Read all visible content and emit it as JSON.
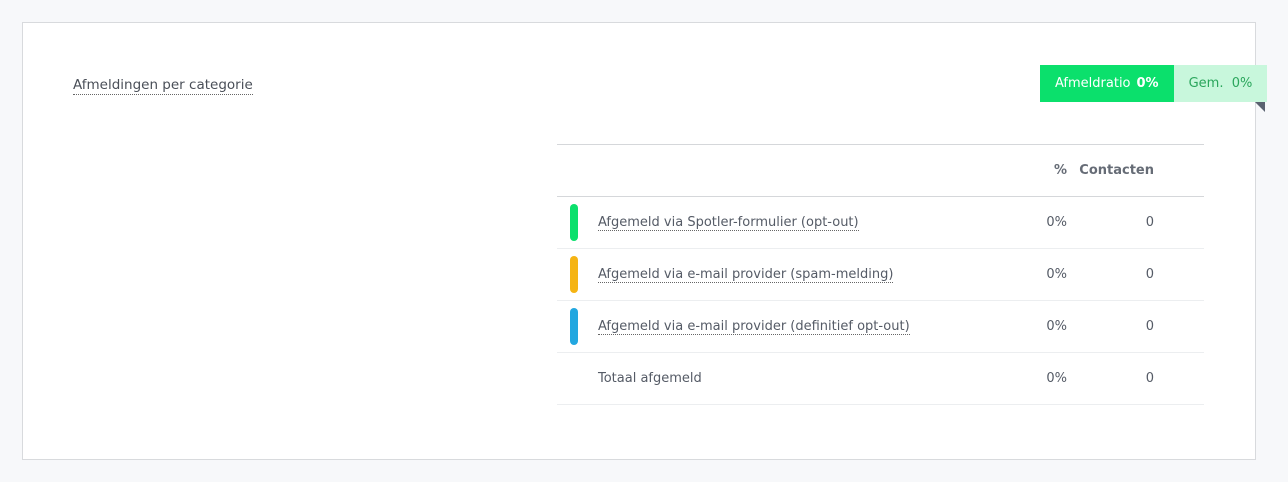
{
  "title": "Afmeldingen per categorie",
  "badge": {
    "label": "Afmeldratio",
    "value": "0%",
    "avg_label": "Gem.",
    "avg_value": "0%",
    "accent": "#0be06c"
  },
  "table": {
    "headers": {
      "percent": "%",
      "contacts": "Contacten"
    },
    "rows": [
      {
        "label": "Afgemeld via Spotler-formulier (opt-out)",
        "percent": "0%",
        "contacts": "0",
        "color": "#0be06c"
      },
      {
        "label": "Afgemeld via e-mail provider (spam-melding)",
        "percent": "0%",
        "contacts": "0",
        "color": "#f5b414"
      },
      {
        "label": "Afgemeld via e-mail provider (definitief opt-out)",
        "percent": "0%",
        "contacts": "0",
        "color": "#22a7e0"
      }
    ],
    "total": {
      "label": "Totaal afgemeld",
      "percent": "0%",
      "contacts": "0"
    }
  }
}
